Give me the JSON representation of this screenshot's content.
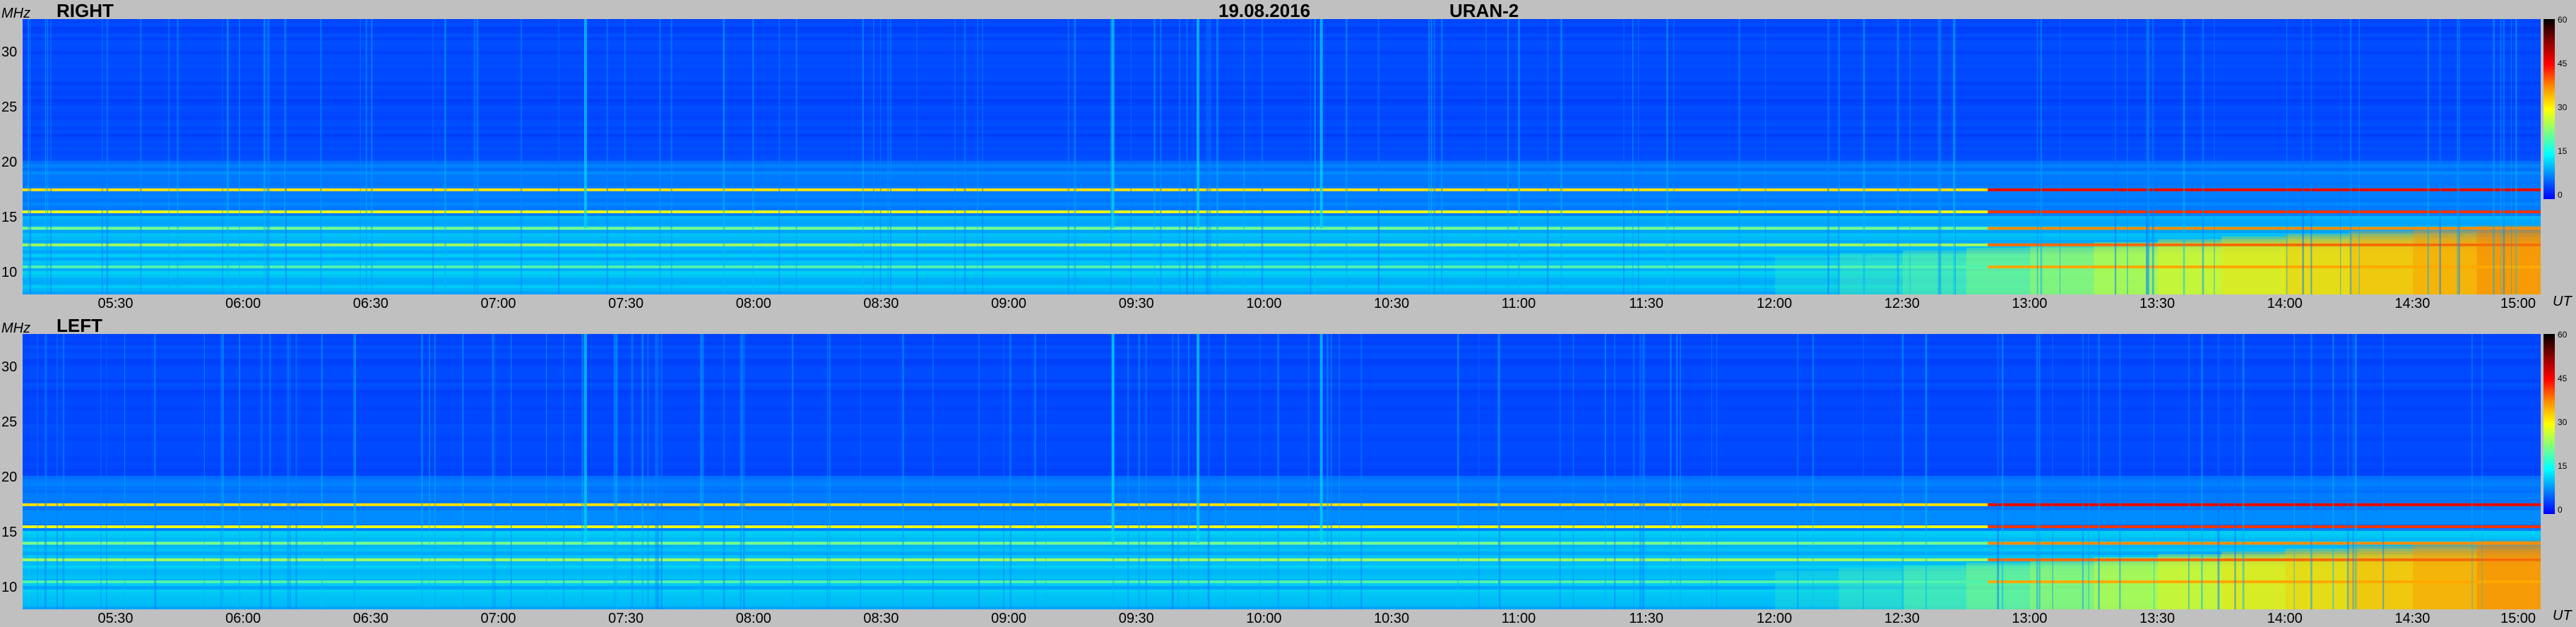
{
  "header": {
    "date": "19.08.2016",
    "instrument": "URAN-2"
  },
  "axis": {
    "y_unit": "MHz",
    "x_unit": "UT",
    "y_ticks": [
      "30",
      "25",
      "20",
      "15",
      "10"
    ],
    "x_ticks": [
      "05:30",
      "06:00",
      "06:30",
      "07:00",
      "07:30",
      "08:00",
      "08:30",
      "09:00",
      "09:30",
      "10:00",
      "10:30",
      "11:00",
      "11:30",
      "12:00",
      "12:30",
      "13:00",
      "13:30",
      "14:00",
      "14:30",
      "15:00"
    ]
  },
  "colorbar": {
    "ticks": [
      "60",
      "45",
      "30",
      "15",
      "0"
    ],
    "colors": [
      "#000000",
      "#8b0000",
      "#ff0000",
      "#ff8c00",
      "#ffff00",
      "#7fff7f",
      "#00ffff",
      "#007fff",
      "#0000ff"
    ]
  },
  "chart_data": [
    {
      "type": "heatmap",
      "title": "RIGHT",
      "xlabel": "UT",
      "ylabel": "MHz",
      "x_range": [
        "05:08",
        "15:00"
      ],
      "y_range": [
        8,
        33
      ],
      "z_range": [
        0,
        60
      ],
      "features": [
        {
          "freq_MHz": 17.5,
          "level": 38
        },
        {
          "freq_MHz": 15.5,
          "level": 35
        },
        {
          "freq_MHz": 14.0,
          "level": 30
        },
        {
          "freq_MHz": 12.5,
          "level": 32
        },
        {
          "freq_MHz": 10.5,
          "level": 28
        }
      ]
    },
    {
      "type": "heatmap",
      "title": "LEFT",
      "xlabel": "UT",
      "ylabel": "MHz",
      "x_range": [
        "05:08",
        "15:00"
      ],
      "y_range": [
        8,
        33
      ],
      "z_range": [
        0,
        60
      ],
      "features": [
        {
          "freq_MHz": 17.5,
          "level": 38
        },
        {
          "freq_MHz": 15.5,
          "level": 35
        },
        {
          "freq_MHz": 14.0,
          "level": 30
        },
        {
          "freq_MHz": 12.5,
          "level": 32
        },
        {
          "freq_MHz": 10.5,
          "level": 28
        }
      ]
    }
  ]
}
